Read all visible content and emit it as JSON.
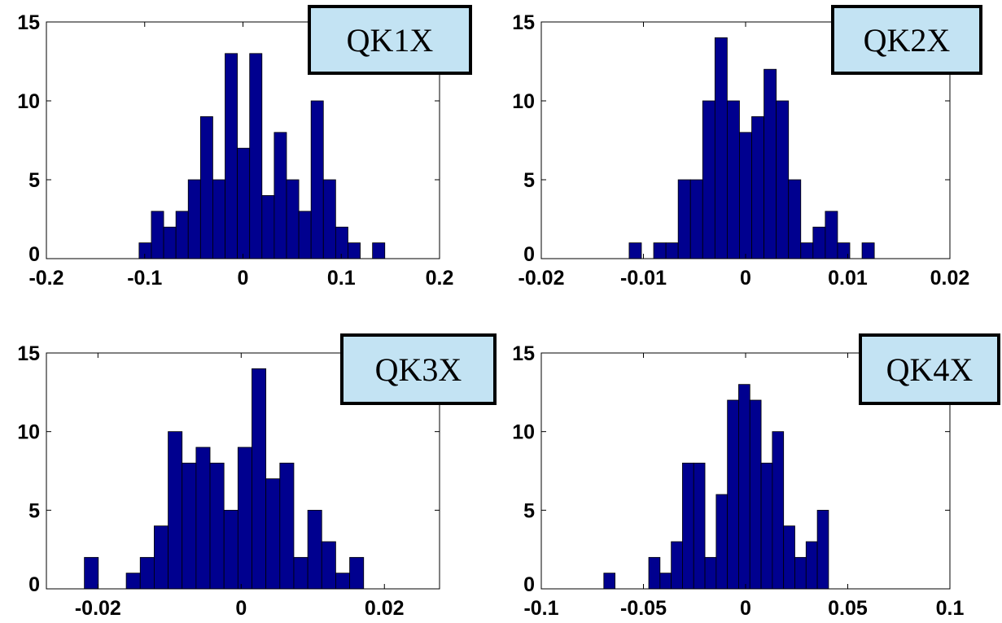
{
  "chart_data": [
    {
      "type": "histogram",
      "bins": [
        -0.1057,
        -0.0932,
        -0.0807,
        -0.0682,
        -0.0557,
        -0.0432,
        -0.0307,
        -0.0182,
        -0.0057,
        0.0068,
        0.0193,
        0.0318,
        0.0443,
        0.0568,
        0.0693,
        0.0818,
        0.0943,
        0.1068,
        0.1193,
        0.1318,
        0.1443
      ],
      "series": [
        {
          "name": "QK1X",
          "color": "#00008f",
          "values": [
            1,
            3,
            2,
            3,
            5,
            9,
            5,
            13,
            7,
            13,
            4,
            8,
            5,
            3,
            10,
            5,
            2,
            1,
            0,
            1
          ]
        }
      ],
      "xlim": [
        -0.2,
        0.2
      ],
      "xticks": [
        -0.2,
        -0.1,
        0,
        0.1,
        0.2
      ],
      "ylim": [
        0,
        15
      ],
      "yticks": [
        0,
        5,
        10,
        15
      ]
    },
    {
      "type": "histogram",
      "bins": [
        -0.0114,
        -0.0102,
        -0.009,
        -0.0078,
        -0.0066,
        -0.0054,
        -0.0042,
        -0.003,
        -0.0018,
        -0.0006,
        0.0006,
        0.0018,
        0.003,
        0.0042,
        0.0054,
        0.0066,
        0.0078,
        0.009,
        0.0102,
        0.0114,
        0.0126
      ],
      "series": [
        {
          "name": "QK2X",
          "color": "#00008f",
          "values": [
            1,
            0,
            1,
            1,
            5,
            5,
            10,
            14,
            10,
            8,
            9,
            12,
            10,
            5,
            1,
            2,
            3,
            1,
            0,
            1
          ]
        }
      ],
      "xlim": [
        -0.02,
        0.02
      ],
      "xticks": [
        -0.02,
        -0.01,
        0,
        0.01,
        0.02
      ],
      "ylim": [
        0,
        15
      ],
      "yticks": [
        0,
        5,
        10,
        15
      ]
    },
    {
      "type": "histogram",
      "bins": [
        -0.0219,
        -0.01995,
        -0.018,
        -0.01605,
        -0.0141,
        -0.01215,
        -0.0102,
        -0.00825,
        -0.0063,
        -0.00435,
        -0.0024,
        -0.00045,
        0.0015,
        0.00345,
        0.0054,
        0.00735,
        0.0093,
        0.01125,
        0.0132,
        0.01515,
        0.0171
      ],
      "series": [
        {
          "name": "QK3X",
          "color": "#00008f",
          "values": [
            2,
            0,
            0,
            1,
            2,
            4,
            10,
            8,
            9,
            8,
            5,
            9,
            14,
            7,
            8,
            2,
            5,
            3,
            1,
            2
          ]
        }
      ],
      "xlim": [
        -0.0272,
        0.0277
      ],
      "xticks": [
        -0.02,
        0,
        0.02
      ],
      "ylim": [
        0,
        15
      ],
      "yticks": [
        0,
        5,
        10,
        15
      ]
    },
    {
      "type": "histogram",
      "bins": [
        -0.0694,
        -0.0639,
        -0.0584,
        -0.0529,
        -0.0474,
        -0.0419,
        -0.0364,
        -0.0309,
        -0.0254,
        -0.0199,
        -0.0144,
        -0.0089,
        -0.0034,
        0.0021,
        0.0076,
        0.0131,
        0.0186,
        0.0241,
        0.0296,
        0.0351,
        0.0406
      ],
      "series": [
        {
          "name": "QK4X",
          "color": "#00008f",
          "values": [
            1,
            0,
            0,
            0,
            2,
            1,
            3,
            8,
            8,
            2,
            6,
            12,
            13,
            12,
            8,
            10,
            4,
            2,
            3,
            5
          ]
        }
      ],
      "xlim": [
        -0.1,
        0.1
      ],
      "xticks": [
        -0.1,
        -0.05,
        0,
        0.05,
        0.1
      ],
      "ylim": [
        0,
        15
      ],
      "yticks": [
        0,
        5,
        10,
        15
      ]
    }
  ]
}
